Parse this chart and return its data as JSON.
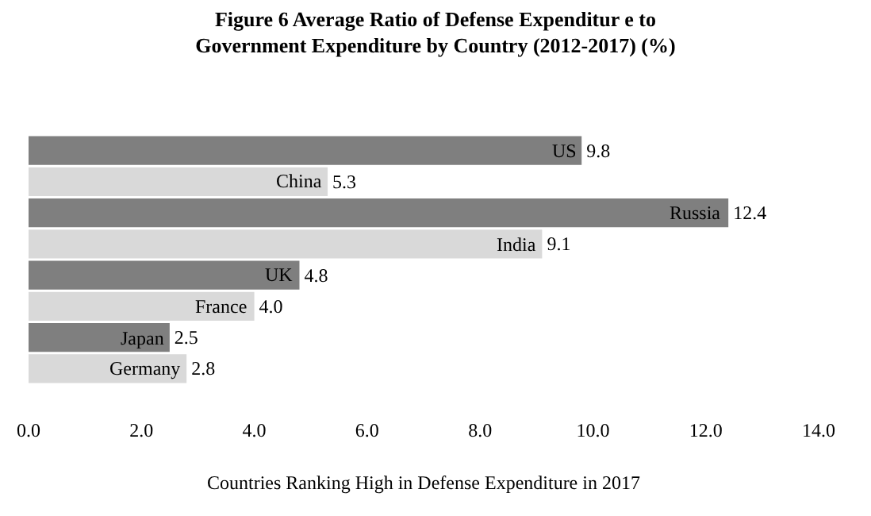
{
  "chart_data": {
    "type": "bar",
    "orientation": "horizontal",
    "title": "Figure 6 Average Ratio of Defense Expenditur e to Government Expenditure by Country (2012-2017) (%)",
    "xlabel": "Countries Ranking High in Defense Expenditure in 2017",
    "categories": [
      "US",
      "China",
      "Russia",
      "India",
      "UK",
      "France",
      "Japan",
      "Germany"
    ],
    "values": [
      9.8,
      5.3,
      12.4,
      9.1,
      4.8,
      4.0,
      2.5,
      2.8
    ],
    "colors": [
      "#7f7f7f",
      "#d9d9d9",
      "#7f7f7f",
      "#d9d9d9",
      "#7f7f7f",
      "#d9d9d9",
      "#7f7f7f",
      "#d9d9d9"
    ],
    "xlim": [
      0,
      14
    ],
    "xticks": [
      {
        "value": 0,
        "label": "0.0"
      },
      {
        "value": 2,
        "label": "2.0"
      },
      {
        "value": 4,
        "label": "4.0"
      },
      {
        "value": 6,
        "label": "6.0"
      },
      {
        "value": 8,
        "label": "8.0"
      },
      {
        "value": 10,
        "label": "10.0"
      },
      {
        "value": 12,
        "label": "12.0"
      },
      {
        "value": 14,
        "label": "14.0"
      }
    ],
    "value_labels": [
      "9.8",
      "5.3",
      "12.4",
      "9.1",
      "4.8",
      "4.0",
      "2.5",
      "2.8"
    ],
    "tick_labels": "x",
    "grid": false,
    "legend": false
  }
}
